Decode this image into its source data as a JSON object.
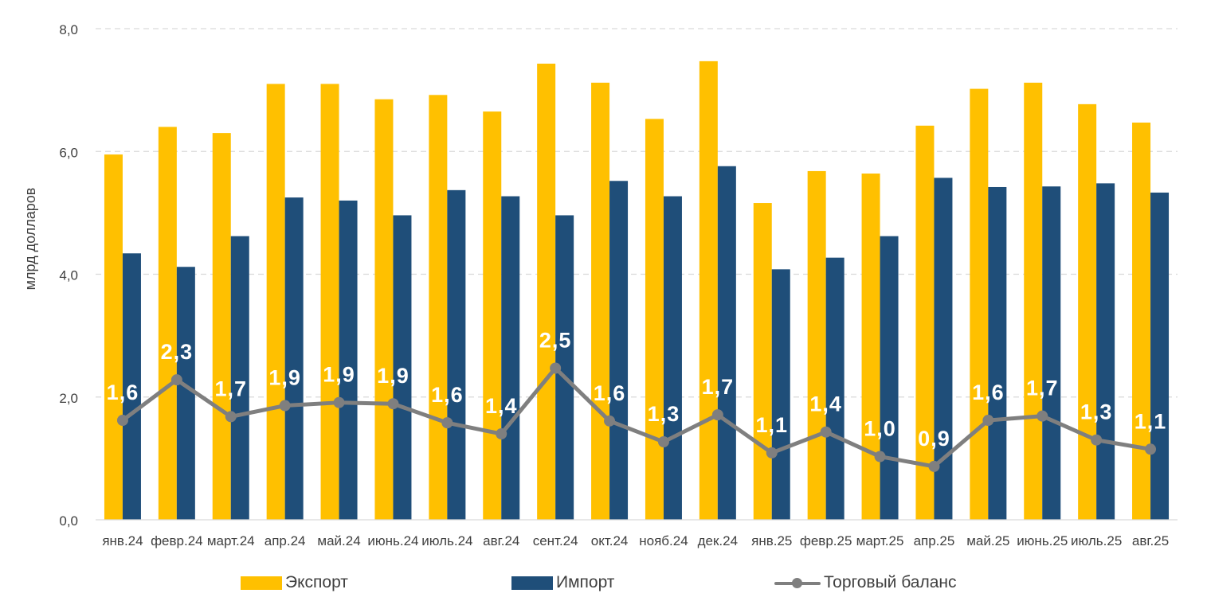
{
  "chart_data": {
    "type": "bar+line",
    "ylabel": "млрд долларов",
    "ylim": [
      0,
      8
    ],
    "yticks": [
      "0,0",
      "2,0",
      "4,0",
      "6,0",
      "8,0"
    ],
    "categories": [
      "янв.24",
      "февр.24",
      "март.24",
      "апр.24",
      "май.24",
      "июнь.24",
      "июль.24",
      "авг.24",
      "сент.24",
      "окт.24",
      "нояб.24",
      "дек.24",
      "янв.25",
      "февр.25",
      "март.25",
      "апр.25",
      "май.25",
      "июнь.25",
      "июль.25",
      "авг.25"
    ],
    "series": [
      {
        "name": "Экспорт",
        "type": "bar",
        "color": "#FFC000",
        "values": [
          5.95,
          6.4,
          6.3,
          7.1,
          7.1,
          6.85,
          6.92,
          6.65,
          7.43,
          7.12,
          6.53,
          7.47,
          5.16,
          5.68,
          5.64,
          6.42,
          7.02,
          7.12,
          6.77,
          6.47
        ]
      },
      {
        "name": "Импорт",
        "type": "bar",
        "color": "#1F4E79",
        "values": [
          4.34,
          4.12,
          4.62,
          5.25,
          5.2,
          4.96,
          5.37,
          5.27,
          4.96,
          5.52,
          5.27,
          5.76,
          4.08,
          4.27,
          4.62,
          5.57,
          5.42,
          5.43,
          5.48,
          5.33
        ]
      },
      {
        "name": "Торговый баланс",
        "type": "line",
        "color": "#7F7F7F",
        "values": [
          1.62,
          2.28,
          1.68,
          1.86,
          1.91,
          1.89,
          1.58,
          1.4,
          2.47,
          1.61,
          1.27,
          1.71,
          1.09,
          1.43,
          1.03,
          0.87,
          1.62,
          1.69,
          1.3,
          1.15
        ],
        "labels": [
          "1,6",
          "2,3",
          "1,7",
          "1,9",
          "1,9",
          "1,9",
          "1,6",
          "1,4",
          "2,5",
          "1,6",
          "1,3",
          "1,7",
          "1,1",
          "1,4",
          "1,0",
          "0,9",
          "1,6",
          "1,7",
          "1,3",
          "1,1"
        ]
      }
    ],
    "grid": true,
    "legend_position": "bottom"
  }
}
